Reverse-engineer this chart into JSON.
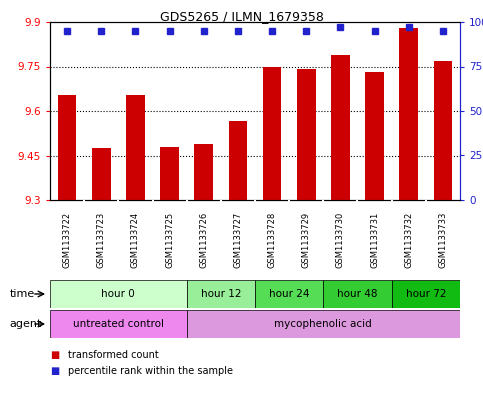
{
  "title": "GDS5265 / ILMN_1679358",
  "samples": [
    "GSM1133722",
    "GSM1133723",
    "GSM1133724",
    "GSM1133725",
    "GSM1133726",
    "GSM1133727",
    "GSM1133728",
    "GSM1133729",
    "GSM1133730",
    "GSM1133731",
    "GSM1133732",
    "GSM1133733"
  ],
  "bar_values": [
    9.655,
    9.475,
    9.655,
    9.48,
    9.49,
    9.565,
    9.75,
    9.74,
    9.79,
    9.73,
    9.88,
    9.77
  ],
  "percentile_values": [
    95,
    95,
    95,
    95,
    95,
    95,
    95,
    95,
    97,
    95,
    97,
    95
  ],
  "bar_color": "#cc0000",
  "dot_color": "#2222cc",
  "ymin": 9.3,
  "ymax": 9.9,
  "yticks": [
    9.3,
    9.45,
    9.6,
    9.75,
    9.9
  ],
  "right_yticks": [
    0,
    25,
    50,
    75,
    100
  ],
  "right_yticklabels": [
    "0",
    "25",
    "50",
    "75",
    "100%"
  ],
  "time_groups": [
    {
      "label": "hour 0",
      "start": 0,
      "end": 4,
      "color": "#ccffcc"
    },
    {
      "label": "hour 12",
      "start": 4,
      "end": 6,
      "color": "#99ee99"
    },
    {
      "label": "hour 24",
      "start": 6,
      "end": 8,
      "color": "#55dd55"
    },
    {
      "label": "hour 48",
      "start": 8,
      "end": 10,
      "color": "#33cc33"
    },
    {
      "label": "hour 72",
      "start": 10,
      "end": 12,
      "color": "#11bb11"
    }
  ],
  "agent_groups": [
    {
      "label": "untreated control",
      "start": 0,
      "end": 4,
      "color": "#ee88ee"
    },
    {
      "label": "mycophenolic acid",
      "start": 4,
      "end": 12,
      "color": "#dd99dd"
    }
  ],
  "legend_items": [
    {
      "label": "transformed count",
      "color": "#cc0000"
    },
    {
      "label": "percentile rank within the sample",
      "color": "#2222cc"
    }
  ],
  "bar_width": 0.55,
  "background_color": "#ffffff",
  "plot_bg_color": "#ffffff",
  "xtick_bg_color": "#cccccc",
  "grid_color": "#000000",
  "axis_label_time": "time",
  "axis_label_agent": "agent"
}
